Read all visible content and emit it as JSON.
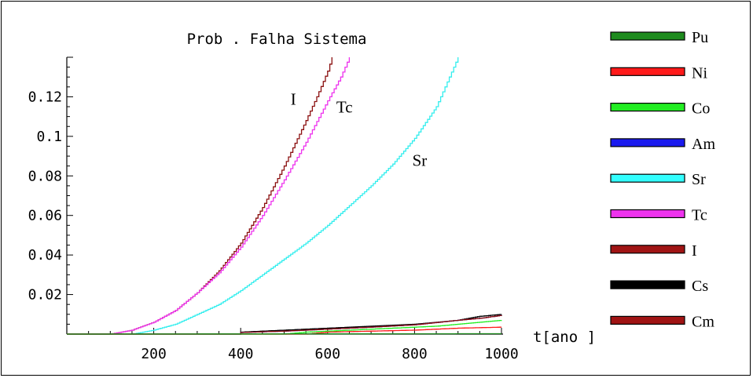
{
  "chart_data": {
    "type": "line",
    "title": "Prob . Falha  Sistema",
    "xlabel": "t[ano ]",
    "ylabel": "",
    "xlim": [
      0,
      1000
    ],
    "ylim": [
      0,
      0.14
    ],
    "x_ticks": [
      200,
      400,
      600,
      800,
      1000
    ],
    "x_tick_labels": [
      "200",
      "400",
      "600",
      "800",
      "1000"
    ],
    "y_ticks": [
      0.02,
      0.04,
      0.06,
      0.08,
      0.1,
      0.12
    ],
    "y_tick_labels": [
      "0.02",
      "0.04",
      "0.06",
      "0.08",
      "0.1",
      "0.12"
    ],
    "grid": false,
    "legend_position": "right",
    "legend": [
      {
        "name": "Pu",
        "color": "#1e8b1e"
      },
      {
        "name": "Ni",
        "color": "#ff1a1a"
      },
      {
        "name": "Co",
        "color": "#22ee22"
      },
      {
        "name": "Am",
        "color": "#1a1aee"
      },
      {
        "name": "Sr",
        "color": "#33ffff"
      },
      {
        "name": "Tc",
        "color": "#ee33ee"
      },
      {
        "name": "I",
        "color": "#a01414"
      },
      {
        "name": "Cs",
        "color": "#000000"
      },
      {
        "name": "Cm",
        "color": "#a01414"
      }
    ],
    "series": [
      {
        "name": "I",
        "color": "#8b1010",
        "step": true,
        "points": [
          [
            0,
            0
          ],
          [
            100,
            0
          ],
          [
            150,
            0.002
          ],
          [
            200,
            0.006
          ],
          [
            250,
            0.012
          ],
          [
            300,
            0.021
          ],
          [
            350,
            0.032
          ],
          [
            400,
            0.046
          ],
          [
            450,
            0.064
          ],
          [
            500,
            0.085
          ],
          [
            550,
            0.108
          ],
          [
            575,
            0.12
          ],
          [
            600,
            0.133
          ],
          [
            610,
            0.14
          ]
        ]
      },
      {
        "name": "Tc",
        "color": "#ee33ee",
        "step": true,
        "points": [
          [
            0,
            0
          ],
          [
            100,
            0
          ],
          [
            150,
            0.002
          ],
          [
            200,
            0.006
          ],
          [
            250,
            0.012
          ],
          [
            300,
            0.021
          ],
          [
            350,
            0.031
          ],
          [
            400,
            0.044
          ],
          [
            450,
            0.06
          ],
          [
            500,
            0.078
          ],
          [
            550,
            0.097
          ],
          [
            600,
            0.118
          ],
          [
            630,
            0.13
          ],
          [
            650,
            0.14
          ]
        ]
      },
      {
        "name": "Sr",
        "color": "#33eeee",
        "step": true,
        "points": [
          [
            150,
            0
          ],
          [
            200,
            0.002
          ],
          [
            250,
            0.005
          ],
          [
            300,
            0.01
          ],
          [
            350,
            0.015
          ],
          [
            400,
            0.022
          ],
          [
            450,
            0.03
          ],
          [
            500,
            0.038
          ],
          [
            550,
            0.046
          ],
          [
            600,
            0.055
          ],
          [
            650,
            0.065
          ],
          [
            700,
            0.075
          ],
          [
            750,
            0.086
          ],
          [
            800,
            0.099
          ],
          [
            850,
            0.115
          ],
          [
            900,
            0.14
          ]
        ]
      },
      {
        "name": "Cs",
        "color": "#000000",
        "step": true,
        "points": [
          [
            0,
            0
          ],
          [
            400,
            0
          ],
          [
            400,
            0.001
          ],
          [
            500,
            0.002
          ],
          [
            600,
            0.003
          ],
          [
            700,
            0.004
          ],
          [
            800,
            0.005
          ],
          [
            900,
            0.007
          ],
          [
            950,
            0.009
          ],
          [
            1000,
            0.01
          ]
        ]
      },
      {
        "name": "Am",
        "color": "#1a1aee",
        "step": true,
        "points": [
          [
            0,
            0
          ],
          [
            400,
            0
          ],
          [
            400,
            0.0008
          ],
          [
            500,
            0.0015
          ],
          [
            600,
            0.0025
          ],
          [
            700,
            0.0035
          ],
          [
            800,
            0.0047
          ],
          [
            900,
            0.007
          ],
          [
            950,
            0.008
          ],
          [
            1000,
            0.0095
          ]
        ]
      },
      {
        "name": "Cm",
        "color": "#8b1010",
        "step": true,
        "points": [
          [
            0,
            0
          ],
          [
            400,
            0
          ],
          [
            400,
            0.0008
          ],
          [
            500,
            0.0015
          ],
          [
            600,
            0.0025
          ],
          [
            700,
            0.0035
          ],
          [
            800,
            0.0047
          ],
          [
            900,
            0.007
          ],
          [
            950,
            0.008
          ],
          [
            1000,
            0.0095
          ]
        ]
      },
      {
        "name": "Co",
        "color": "#22ee22",
        "step": true,
        "points": [
          [
            0,
            0
          ],
          [
            500,
            0
          ],
          [
            550,
            0.001
          ],
          [
            650,
            0.002
          ],
          [
            750,
            0.003
          ],
          [
            850,
            0.004
          ],
          [
            900,
            0.005
          ],
          [
            950,
            0.006
          ],
          [
            1000,
            0.007
          ]
        ]
      },
      {
        "name": "Ni",
        "color": "#ff1a1a",
        "step": true,
        "points": [
          [
            0,
            0
          ],
          [
            550,
            0
          ],
          [
            600,
            0.001
          ],
          [
            800,
            0.002
          ],
          [
            900,
            0.003
          ],
          [
            1000,
            0.0035
          ]
        ]
      },
      {
        "name": "Pu",
        "color": "#1e8b1e",
        "step": true,
        "points": [
          [
            0,
            0
          ],
          [
            1000,
            0.0002
          ]
        ]
      }
    ],
    "annotations": [
      {
        "text": "I",
        "x": 515,
        "y": 0.116
      },
      {
        "text": "Tc",
        "x": 620,
        "y": 0.112
      },
      {
        "text": "Sr",
        "x": 795,
        "y": 0.085
      }
    ]
  }
}
